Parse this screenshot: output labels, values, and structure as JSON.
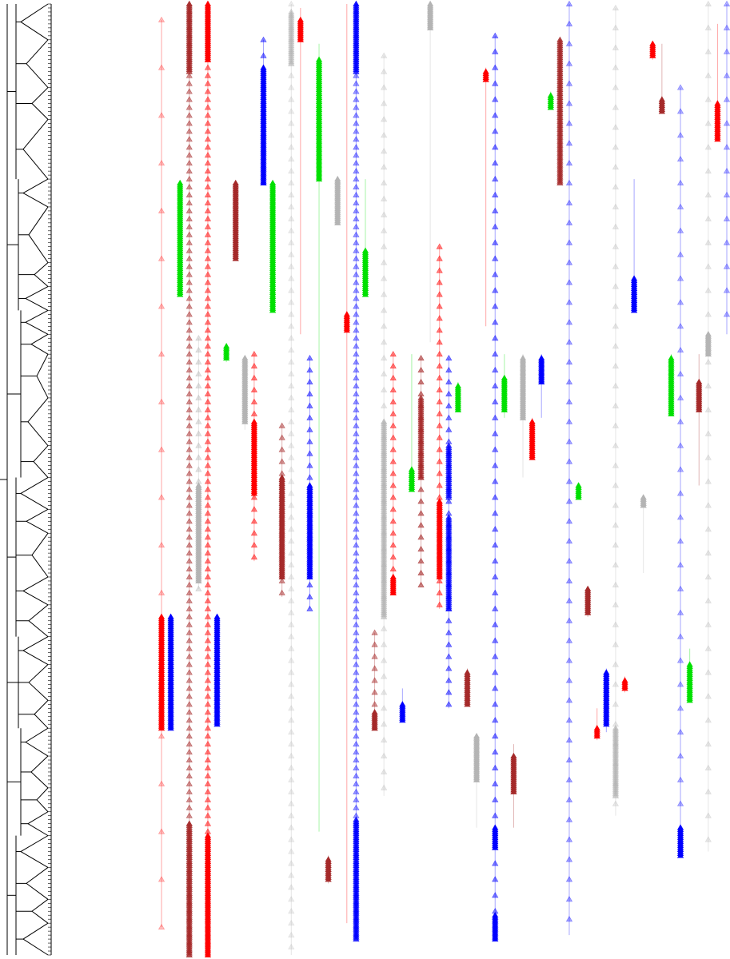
{
  "figure": {
    "type": "dendrogram-with-marker-tracks",
    "background": "#ffffff",
    "tree_color": "#000000",
    "marker_shape": "triangle",
    "palette": {
      "red": "#ff0000",
      "darkred": "#a52a2a",
      "blue": "#0000ff",
      "green": "#00e000",
      "grey": "#b4b4b4"
    }
  },
  "chart_data": {
    "type": "tree-track-plot",
    "title": "",
    "xlabel": "",
    "ylabel": "",
    "row_count": 240,
    "tree": {
      "root": {
        "children": [
          {
            "rows": [
              1,
              45
            ],
            "clusters": [
              [
                1,
                10
              ],
              [
                10,
                22
              ],
              [
                22,
                30
              ],
              [
                30,
                45
              ]
            ]
          },
          {
            "rows": [
              45,
              78
            ],
            "clusters": [
              [
                45,
                52
              ],
              [
                52,
                66
              ],
              [
                66,
                72
              ],
              [
                72,
                78
              ]
            ]
          },
          {
            "rows": [
              78,
              120
            ],
            "clusters": [
              [
                78,
                84
              ],
              [
                84,
                89
              ],
              [
                89,
                100
              ],
              [
                100,
                112
              ],
              [
                112,
                120
              ]
            ]
          },
          {
            "rows": [
              120,
              160
            ],
            "clusters": [
              [
                120,
                128
              ],
              [
                128,
                134
              ],
              [
                134,
                145
              ],
              [
                145,
                152
              ],
              [
                152,
                160
              ]
            ]
          },
          {
            "rows": [
              160,
              183
            ],
            "clusters": [
              [
                160,
                167
              ],
              [
                167,
                176
              ],
              [
                176,
                183
              ]
            ]
          },
          {
            "rows": [
              183,
              210
            ],
            "clusters": [
              [
                183,
                190
              ],
              [
                190,
                198
              ],
              [
                198,
                204
              ],
              [
                204,
                210
              ]
            ]
          },
          {
            "rows": [
              210,
              240
            ],
            "clusters": [
              [
                210,
                218
              ],
              [
                218,
                226
              ],
              [
                226,
                232
              ],
              [
                232,
                240
              ]
            ]
          }
        ]
      }
    },
    "tracks": [
      {
        "color": "red",
        "span": [
          5,
          233
        ],
        "sparse": [
          [
            5,
            233,
            12,
            0.25
          ]
        ],
        "dense": [
          [
            155,
            183,
            1
          ]
        ]
      },
      {
        "color": "blue",
        "span": [
          155,
          183
        ],
        "sparse": [],
        "dense": [
          [
            155,
            183,
            1
          ]
        ]
      },
      {
        "color": "green",
        "span": [
          46,
          74
        ],
        "sparse": [],
        "dense": [
          [
            46,
            74,
            1
          ]
        ]
      },
      {
        "color": "darkred",
        "span": [
          1,
          240
        ],
        "sparse": [
          [
            1,
            240,
            2,
            0.5
          ]
        ],
        "dense": [
          [
            1,
            18,
            0.8
          ],
          [
            207,
            240,
            0.8
          ]
        ]
      },
      {
        "color": "grey",
        "span": [
          85,
          148
        ],
        "sparse": [
          [
            85,
            148,
            3,
            0.4
          ]
        ],
        "dense": [
          [
            122,
            146,
            1
          ]
        ]
      },
      {
        "color": "red",
        "span": [
          1,
          240
        ],
        "sparse": [
          [
            1,
            240,
            2,
            0.5
          ]
        ],
        "dense": [
          [
            1,
            15,
            1
          ],
          [
            210,
            240,
            1
          ]
        ]
      },
      {
        "color": "blue",
        "span": [
          155,
          182
        ],
        "sparse": [],
        "dense": [
          [
            155,
            182,
            1
          ]
        ]
      },
      {
        "color": "green",
        "span": [
          87,
          91
        ],
        "sparse": [],
        "dense": [
          [
            87,
            90,
            1
          ]
        ]
      },
      {
        "color": "darkred",
        "span": [
          46,
          65
        ],
        "sparse": [],
        "dense": [
          [
            46,
            65,
            1
          ]
        ]
      },
      {
        "color": "grey",
        "span": [
          90,
          108
        ],
        "sparse": [],
        "dense": [
          [
            90,
            106,
            1
          ]
        ]
      },
      {
        "color": "red",
        "span": [
          89,
          141
        ],
        "sparse": [
          [
            89,
            141,
            3,
            0.5
          ]
        ],
        "dense": [
          [
            106,
            124,
            1
          ]
        ]
      },
      {
        "color": "blue",
        "span": [
          10,
          46
        ],
        "sparse": [
          [
            10,
            46,
            4,
            0.5
          ]
        ],
        "dense": [
          [
            17,
            46,
            1
          ]
        ]
      },
      {
        "color": "green",
        "span": [
          46,
          78
        ],
        "sparse": [],
        "dense": [
          [
            46,
            78,
            1
          ]
        ]
      },
      {
        "color": "darkred",
        "span": [
          107,
          150
        ],
        "sparse": [
          [
            107,
            150,
            3,
            0.5
          ]
        ],
        "dense": [
          [
            120,
            145,
            1
          ]
        ]
      },
      {
        "color": "grey",
        "span": [
          1,
          240
        ],
        "sparse": [
          [
            1,
            240,
            3,
            0.25
          ]
        ],
        "dense": [
          [
            3,
            16,
            0.5
          ]
        ]
      },
      {
        "color": "red",
        "span": [
          2,
          84
        ],
        "sparse": [],
        "dense": [
          [
            5,
            10,
            1
          ]
        ]
      },
      {
        "color": "blue",
        "span": [
          90,
          153
        ],
        "sparse": [
          [
            90,
            153,
            3,
            0.5
          ]
        ],
        "dense": [
          [
            122,
            145,
            1
          ]
        ]
      },
      {
        "color": "green",
        "span": [
          11,
          209
        ],
        "sparse": [],
        "dense": [
          [
            15,
            45,
            1
          ]
        ]
      },
      {
        "color": "darkred",
        "span": [
          215,
          222
        ],
        "sparse": [],
        "dense": [
          [
            216,
            221,
            1
          ]
        ]
      },
      {
        "color": "grey",
        "span": [
          45,
          56
        ],
        "sparse": [],
        "dense": [
          [
            45,
            56,
            1
          ]
        ]
      },
      {
        "color": "red",
        "span": [
          1,
          232
        ],
        "sparse": [],
        "dense": [
          [
            79,
            83,
            1
          ]
        ]
      },
      {
        "color": "blue",
        "span": [
          1,
          236
        ],
        "sparse": [
          [
            1,
            236,
            2,
            0.4
          ]
        ],
        "dense": [
          [
            1,
            18,
            0.8
          ],
          [
            206,
            236,
            0.8
          ]
        ]
      },
      {
        "color": "green",
        "span": [
          45,
          74
        ],
        "sparse": [],
        "dense": [
          [
            63,
            74,
            1
          ]
        ]
      },
      {
        "color": "darkred",
        "span": [
          159,
          183
        ],
        "sparse": [
          [
            159,
            183,
            3,
            0.5
          ]
        ],
        "dense": [
          [
            179,
            183,
            1
          ]
        ]
      },
      {
        "color": "grey",
        "span": [
          14,
          200
        ],
        "sparse": [
          [
            14,
            200,
            4,
            0.3
          ]
        ],
        "dense": [
          [
            106,
            155,
            0.6
          ]
        ]
      },
      {
        "color": "red",
        "span": [
          89,
          149
        ],
        "sparse": [
          [
            89,
            149,
            3,
            0.5
          ]
        ],
        "dense": [
          [
            145,
            149,
            1
          ]
        ]
      },
      {
        "color": "blue",
        "span": [
          173,
          181
        ],
        "sparse": [],
        "dense": [
          [
            177,
            181,
            1
          ]
        ]
      },
      {
        "color": "green",
        "span": [
          89,
          123
        ],
        "sparse": [],
        "dense": [
          [
            118,
            123,
            1
          ]
        ]
      },
      {
        "color": "darkred",
        "span": [
          90,
          147
        ],
        "sparse": [
          [
            90,
            147,
            3,
            0.6
          ]
        ],
        "dense": [
          [
            100,
            120,
            0.7
          ]
        ]
      },
      {
        "color": "grey",
        "span": [
          1,
          86
        ],
        "sparse": [],
        "dense": [
          [
            1,
            7,
            1
          ]
        ]
      },
      {
        "color": "red",
        "span": [
          62,
          153
        ],
        "sparse": [
          [
            62,
            153,
            3,
            0.5
          ]
        ],
        "dense": [
          [
            126,
            145,
            1
          ]
        ]
      },
      {
        "color": "blue",
        "span": [
          90,
          178
        ],
        "sparse": [
          [
            90,
            178,
            3,
            0.5
          ]
        ],
        "dense": [
          [
            112,
            125,
            0.7
          ],
          [
            130,
            153,
            0.7
          ]
        ]
      },
      {
        "color": "green",
        "span": [
          96,
          103
        ],
        "sparse": [],
        "dense": [
          [
            97,
            103,
            1
          ]
        ]
      },
      {
        "color": "darkred",
        "span": [
          168,
          177
        ],
        "sparse": [],
        "dense": [
          [
            169,
            177,
            1
          ]
        ]
      },
      {
        "color": "grey",
        "span": [
          185,
          208
        ],
        "sparse": [],
        "dense": [
          [
            185,
            196,
            1
          ]
        ]
      },
      {
        "color": "red",
        "span": [
          17,
          82
        ],
        "sparse": [],
        "dense": [
          [
            18,
            20,
            1
          ]
        ]
      },
      {
        "color": "blue",
        "span": [
          9,
          236
        ],
        "sparse": [
          [
            9,
            236,
            4,
            0.5
          ]
        ],
        "dense": [
          [
            208,
            213,
            1
          ],
          [
            230,
            236,
            1
          ]
        ]
      },
      {
        "color": "green",
        "span": [
          89,
          105
        ],
        "sparse": [],
        "dense": [
          [
            95,
            103,
            1
          ]
        ]
      },
      {
        "color": "darkred",
        "span": [
          187,
          208
        ],
        "sparse": [],
        "dense": [
          [
            190,
            199,
            1
          ]
        ]
      },
      {
        "color": "grey",
        "span": [
          89,
          120
        ],
        "sparse": [],
        "dense": [
          [
            90,
            105,
            1
          ]
        ]
      },
      {
        "color": "red",
        "span": [
          105,
          115
        ],
        "sparse": [],
        "dense": [
          [
            106,
            115,
            1
          ]
        ]
      },
      {
        "color": "blue",
        "span": [
          89,
          105
        ],
        "sparse": [],
        "dense": [
          [
            90,
            96,
            1
          ]
        ]
      },
      {
        "color": "green",
        "span": [
          23,
          27
        ],
        "sparse": [],
        "dense": [
          [
            24,
            27,
            1
          ]
        ]
      },
      {
        "color": "darkred",
        "span": [
          10,
          46
        ],
        "sparse": [],
        "dense": [
          [
            10,
            46,
            0.8
          ]
        ]
      },
      {
        "color": "blue",
        "span": [
          1,
          235
        ],
        "sparse": [
          [
            1,
            235,
            5,
            0.35
          ]
        ],
        "dense": []
      },
      {
        "color": "green",
        "span": [
          122,
          125
        ],
        "sparse": [],
        "dense": [
          [
            122,
            125,
            1
          ]
        ]
      },
      {
        "color": "darkred",
        "span": [
          148,
          155
        ],
        "sparse": [],
        "dense": [
          [
            148,
            154,
            1
          ]
        ]
      },
      {
        "color": "red",
        "span": [
          178,
          186
        ],
        "sparse": [],
        "dense": [
          [
            183,
            185,
            1
          ]
        ]
      },
      {
        "color": "blue",
        "span": [
          168,
          184
        ],
        "sparse": [],
        "dense": [
          [
            169,
            182,
            1
          ]
        ]
      },
      {
        "color": "grey",
        "span": [
          2,
          205
        ],
        "sparse": [
          [
            2,
            205,
            5,
            0.3
          ]
        ],
        "dense": [
          [
            183,
            200,
            0.6
          ]
        ]
      },
      {
        "color": "red",
        "span": [
          170,
          174
        ],
        "sparse": [],
        "dense": [
          [
            171,
            173,
            1
          ]
        ]
      },
      {
        "color": "blue",
        "span": [
          45,
          78
        ],
        "sparse": [],
        "dense": [
          [
            70,
            78,
            1
          ]
        ]
      },
      {
        "color": "grey",
        "span": [
          125,
          144
        ],
        "sparse": [],
        "dense": [
          [
            125,
            127,
            1
          ]
        ]
      },
      {
        "color": "red",
        "span": [
          11,
          15
        ],
        "sparse": [],
        "dense": [
          [
            11,
            14,
            1
          ]
        ]
      },
      {
        "color": "darkred",
        "span": [
          11,
          28
        ],
        "sparse": [],
        "dense": [
          [
            25,
            28,
            1
          ]
        ]
      },
      {
        "color": "green",
        "span": [
          89,
          104
        ],
        "sparse": [],
        "dense": [
          [
            90,
            104,
            1
          ]
        ]
      },
      {
        "color": "blue",
        "span": [
          22,
          215
        ],
        "sparse": [
          [
            22,
            215,
            6,
            0.3
          ]
        ],
        "dense": [
          [
            208,
            215,
            1
          ]
        ]
      },
      {
        "color": "green",
        "span": [
          163,
          176
        ],
        "sparse": [],
        "dense": [
          [
            167,
            176,
            1
          ]
        ]
      },
      {
        "color": "darkred",
        "span": [
          89,
          122
        ],
        "sparse": [],
        "dense": [
          [
            96,
            103,
            1
          ]
        ]
      },
      {
        "color": "grey",
        "span": [
          1,
          214
        ],
        "sparse": [
          [
            1,
            214,
            6,
            0.3
          ]
        ],
        "dense": [
          [
            84,
            89,
            1
          ]
        ]
      },
      {
        "color": "red",
        "span": [
          6,
          35
        ],
        "sparse": [],
        "dense": [
          [
            26,
            35,
            1
          ]
        ]
      },
      {
        "color": "blue",
        "span": [
          1,
          84
        ],
        "sparse": [
          [
            1,
            84,
            6,
            0.3
          ]
        ],
        "dense": []
      }
    ]
  }
}
